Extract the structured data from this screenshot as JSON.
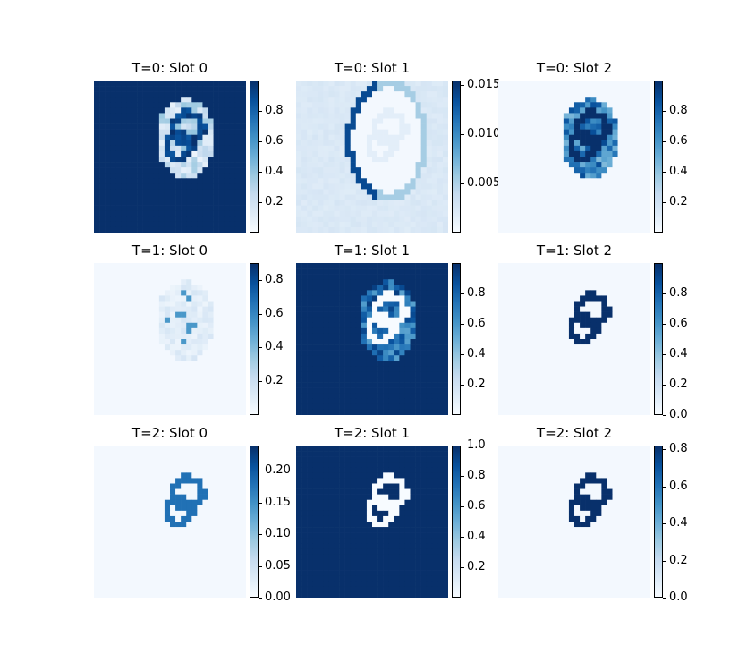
{
  "chart_data": [
    {
      "type": "heatmap",
      "title": "T=0: Slot 0",
      "pattern": "background-high",
      "colorbar_ticks": [
        "0.2",
        "0.4",
        "0.6",
        "0.8"
      ],
      "cmin": 0.0,
      "cmax": 1.0,
      "tick_values": [
        0.2,
        0.4,
        0.6,
        0.8
      ],
      "colormap": "Blues"
    },
    {
      "type": "heatmap",
      "title": "T=0: Slot 1",
      "pattern": "faint-edge",
      "colorbar_ticks": [
        "0.005",
        "0.010",
        "0.015"
      ],
      "cmin": 0.0,
      "cmax": 0.0155,
      "tick_values": [
        0.005,
        0.01,
        0.015
      ],
      "colormap": "Blues"
    },
    {
      "type": "heatmap",
      "title": "T=0: Slot 2",
      "pattern": "object-dense",
      "colorbar_ticks": [
        "0.2",
        "0.4",
        "0.6",
        "0.8"
      ],
      "cmin": 0.0,
      "cmax": 1.0,
      "tick_values": [
        0.2,
        0.4,
        0.6,
        0.8
      ],
      "colormap": "Blues"
    },
    {
      "type": "heatmap",
      "title": "T=1: Slot 0",
      "pattern": "faint-object",
      "colorbar_ticks": [
        "0.2",
        "0.4",
        "0.6",
        "0.8"
      ],
      "cmin": 0.0,
      "cmax": 0.9,
      "tick_values": [
        0.2,
        0.4,
        0.6,
        0.8
      ],
      "colormap": "Blues"
    },
    {
      "type": "heatmap",
      "title": "T=1: Slot 1",
      "pattern": "background-high-ring",
      "colorbar_ticks": [
        "0.2",
        "0.4",
        "0.6",
        "0.8"
      ],
      "cmin": 0.0,
      "cmax": 1.0,
      "tick_values": [
        0.2,
        0.4,
        0.6,
        0.8
      ],
      "colormap": "Blues"
    },
    {
      "type": "heatmap",
      "title": "T=1: Slot 2",
      "pattern": "outline",
      "colorbar_ticks": [
        "0.0",
        "0.2",
        "0.4",
        "0.6",
        "0.8"
      ],
      "cmin": 0.0,
      "cmax": 1.0,
      "tick_values": [
        0.0,
        0.2,
        0.4,
        0.6,
        0.8
      ],
      "colormap": "Blues"
    },
    {
      "type": "heatmap",
      "title": "T=2: Slot 0",
      "pattern": "outline-mid",
      "colorbar_ticks": [
        "0.00",
        "0.05",
        "0.10",
        "0.15",
        "0.20"
      ],
      "cmin": 0.0,
      "cmax": 0.24,
      "tick_values": [
        0.0,
        0.05,
        0.1,
        0.15,
        0.2
      ],
      "colormap": "Blues"
    },
    {
      "type": "heatmap",
      "title": "T=2: Slot 1",
      "pattern": "background-high-outline-white",
      "colorbar_ticks": [
        "0.2",
        "0.4",
        "0.6",
        "0.8",
        "1.0"
      ],
      "cmin": 0.0,
      "cmax": 1.0,
      "tick_values": [
        0.2,
        0.4,
        0.6,
        0.8,
        1.0
      ],
      "colormap": "Blues"
    },
    {
      "type": "heatmap",
      "title": "T=2: Slot 2",
      "pattern": "outline",
      "colorbar_ticks": [
        "0.0",
        "0.2",
        "0.4",
        "0.6",
        "0.8"
      ],
      "cmin": 0.0,
      "cmax": 0.82,
      "tick_values": [
        0.0,
        0.2,
        0.4,
        0.6,
        0.8
      ],
      "colormap": "Blues"
    }
  ]
}
